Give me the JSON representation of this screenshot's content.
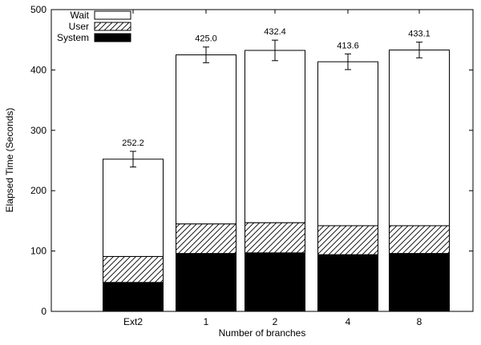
{
  "chart_data": {
    "type": "bar",
    "stacked": true,
    "categories": [
      "Ext2",
      "1",
      "2",
      "4",
      "8"
    ],
    "series": [
      {
        "name": "System",
        "values": [
          48,
          96,
          97,
          94,
          96
        ],
        "pattern": "solid",
        "color": "#000000"
      },
      {
        "name": "User",
        "values": [
          43,
          49,
          50,
          48,
          46
        ],
        "pattern": "hatch",
        "color": "#000000"
      },
      {
        "name": "Wait",
        "values": [
          161.2,
          280.0,
          285.4,
          271.6,
          291.1
        ],
        "pattern": "empty",
        "color": "#ffffff"
      }
    ],
    "totals": [
      "252.2",
      "425.0",
      "432.4",
      "413.6",
      "433.1"
    ],
    "total_values": [
      252.2,
      425.0,
      432.4,
      413.6,
      433.1
    ],
    "error": [
      13,
      13,
      17,
      13,
      13
    ],
    "xlabel": "Number of branches",
    "ylabel": "Elapsed Time (Seconds)",
    "ylim": [
      0,
      500
    ],
    "yticks": [
      "0",
      "100",
      "200",
      "300",
      "400",
      "500"
    ],
    "ytick_values": [
      0,
      100,
      200,
      300,
      400,
      500
    ],
    "legend": {
      "position": "top-left",
      "order": [
        "Wait",
        "User",
        "System"
      ]
    },
    "grid": false
  }
}
